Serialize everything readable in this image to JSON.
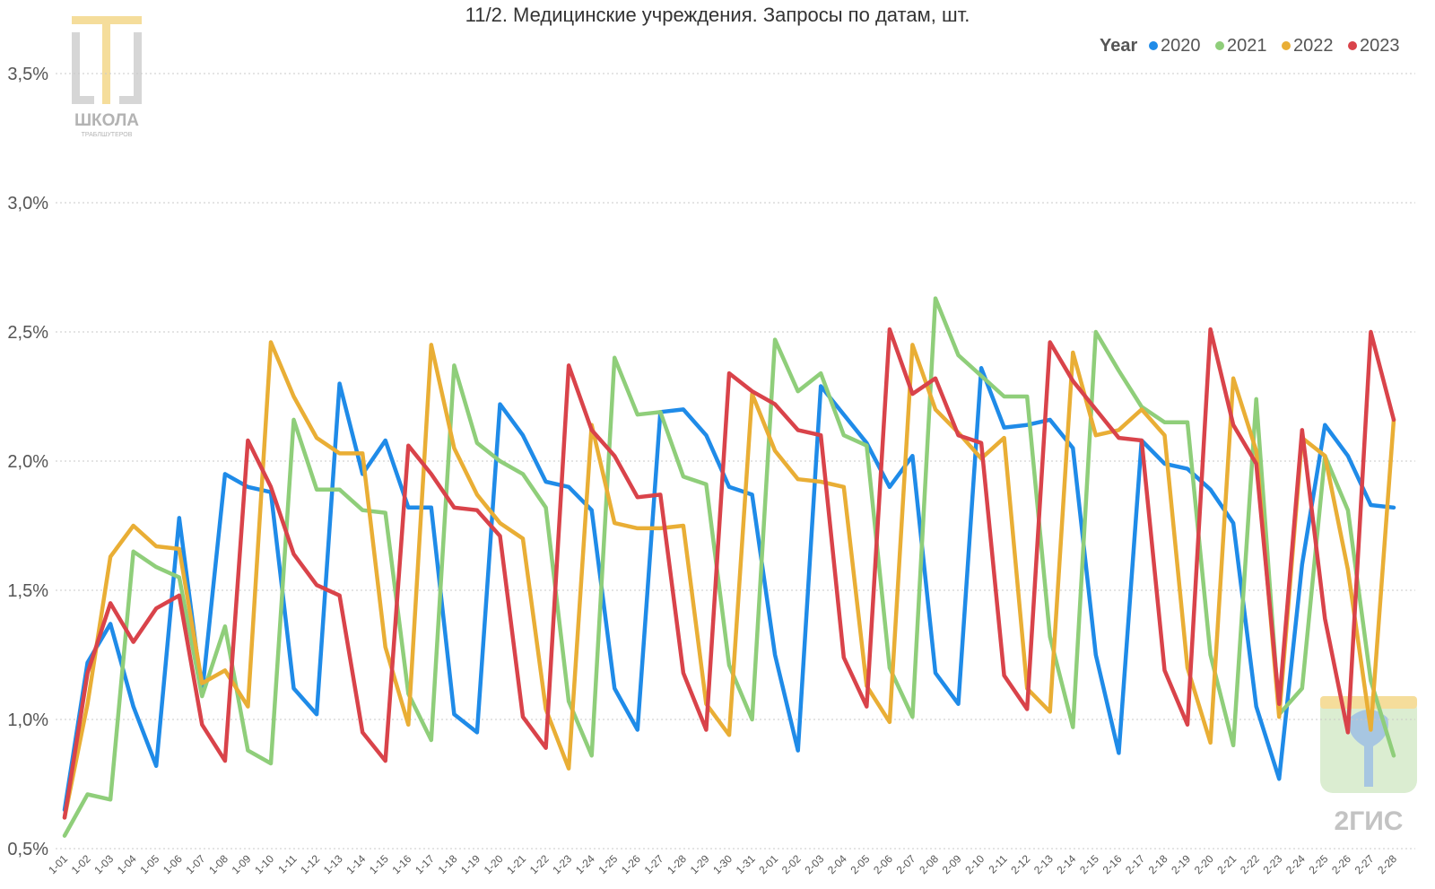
{
  "chart_data": {
    "type": "line",
    "title": "11/2. Медицинские учреждения. Запросы по датам, шт.",
    "legend_title": "Year",
    "legend_position": "top-right",
    "grid": true,
    "y_tick_labels": [
      "0,5%",
      "1,0%",
      "1,5%",
      "2,0%",
      "2,5%",
      "3,0%",
      "3,5%"
    ],
    "y_ticks": [
      0.5,
      1.0,
      1.5,
      2.0,
      2.5,
      3.0,
      3.5
    ],
    "ylim": [
      0.5,
      3.5
    ],
    "x": [
      "1-01",
      "1-02",
      "1-03",
      "1-04",
      "1-05",
      "1-06",
      "1-07",
      "1-08",
      "1-09",
      "1-10",
      "1-11",
      "1-12",
      "1-13",
      "1-14",
      "1-15",
      "1-16",
      "1-17",
      "1-18",
      "1-19",
      "1-20",
      "1-21",
      "1-22",
      "1-23",
      "1-24",
      "1-25",
      "1-26",
      "1-27",
      "1-28",
      "1-29",
      "1-30",
      "1-31",
      "2-01",
      "2-02",
      "2-03",
      "2-04",
      "2-05",
      "2-06",
      "2-07",
      "2-08",
      "2-09",
      "2-10",
      "2-11",
      "2-12",
      "2-13",
      "2-14",
      "2-15",
      "2-16",
      "2-17",
      "2-18",
      "2-19",
      "2-20",
      "2-21",
      "2-22",
      "2-23",
      "2-24",
      "2-25",
      "2-26",
      "2-27",
      "2-28"
    ],
    "series": [
      {
        "name": "2020",
        "color": "#1f8be8",
        "values": [
          0.65,
          1.22,
          1.37,
          1.05,
          0.82,
          1.78,
          1.1,
          1.95,
          1.9,
          1.88,
          1.12,
          1.02,
          2.3,
          1.95,
          2.08,
          1.82,
          1.82,
          1.02,
          0.95,
          2.22,
          2.1,
          1.92,
          1.9,
          1.81,
          1.12,
          0.96,
          2.19,
          2.2,
          2.1,
          1.9,
          1.87,
          1.25,
          0.88,
          2.29,
          2.18,
          2.07,
          1.9,
          2.02,
          1.18,
          1.06,
          2.36,
          2.13,
          2.14,
          2.16,
          2.05,
          1.25,
          0.87,
          2.08,
          1.99,
          1.97,
          1.89,
          1.76,
          1.05,
          0.77,
          1.6,
          2.14,
          2.02,
          1.83,
          1.82
        ]
      },
      {
        "name": "2021",
        "color": "#8fce7a",
        "values": [
          0.55,
          0.71,
          0.69,
          1.65,
          1.59,
          1.55,
          1.09,
          1.36,
          0.88,
          0.83,
          2.16,
          1.89,
          1.89,
          1.81,
          1.8,
          1.1,
          0.92,
          2.37,
          2.07,
          2.0,
          1.95,
          1.82,
          1.07,
          0.86,
          2.4,
          2.18,
          2.19,
          1.94,
          1.91,
          1.21,
          1.0,
          2.47,
          2.27,
          2.34,
          2.1,
          2.06,
          1.2,
          1.01,
          2.63,
          2.41,
          2.33,
          2.25,
          2.25,
          1.32,
          0.97,
          2.5,
          2.35,
          2.21,
          2.15,
          2.15,
          1.25,
          0.9,
          2.24,
          1.02,
          1.12,
          2.02,
          1.81,
          1.15,
          0.86
        ]
      },
      {
        "name": "2022",
        "color": "#e9ae35",
        "values": [
          0.62,
          1.06,
          1.63,
          1.75,
          1.67,
          1.66,
          1.14,
          1.19,
          1.05,
          2.46,
          2.25,
          2.09,
          2.03,
          2.03,
          1.28,
          0.98,
          2.45,
          2.05,
          1.87,
          1.76,
          1.7,
          1.04,
          0.81,
          2.14,
          1.76,
          1.74,
          1.74,
          1.75,
          1.06,
          0.94,
          2.26,
          2.04,
          1.93,
          1.92,
          1.9,
          1.13,
          0.99,
          2.45,
          2.2,
          2.11,
          2.01,
          2.09,
          1.12,
          1.03,
          2.42,
          2.1,
          2.12,
          2.2,
          2.1,
          1.2,
          0.91,
          2.32,
          2.04,
          1.01,
          2.09,
          2.02,
          1.58,
          0.96,
          2.16
        ]
      },
      {
        "name": "2023",
        "color": "#d9434a",
        "values": [
          0.62,
          1.18,
          1.45,
          1.3,
          1.43,
          1.48,
          0.98,
          0.84,
          2.08,
          1.9,
          1.64,
          1.52,
          1.48,
          0.95,
          0.84,
          2.06,
          1.95,
          1.82,
          1.81,
          1.71,
          1.01,
          0.89,
          2.37,
          2.12,
          2.02,
          1.86,
          1.87,
          1.18,
          0.96,
          2.34,
          2.27,
          2.22,
          2.12,
          2.1,
          1.24,
          1.05,
          2.51,
          2.26,
          2.32,
          2.1,
          2.07,
          1.17,
          1.04,
          2.46,
          2.31,
          2.2,
          2.09,
          2.08,
          1.19,
          0.98,
          2.51,
          2.14,
          1.99,
          1.06,
          2.12,
          1.39,
          0.95,
          2.5,
          2.16
        ]
      }
    ]
  },
  "logos": {
    "school_line1": "ШКОЛА",
    "school_line2": "ТРАБЛШУТЕРОВ",
    "brand": "2ГИС"
  }
}
